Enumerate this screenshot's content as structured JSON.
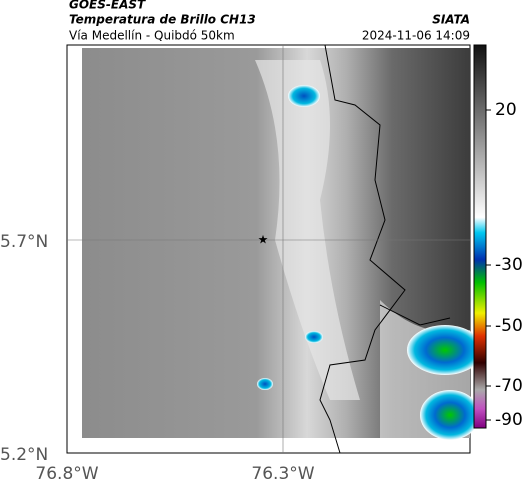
{
  "header": {
    "source": "GOES-EAST",
    "product": "Temperatura de Brillo CH13",
    "org": "SIATA",
    "region": "Vía Medellín - Quibdó 50km",
    "timestamp": "2024-11-06 14:09"
  },
  "axes": {
    "lat_labels": [
      "5.7°N",
      "5.2°N"
    ],
    "lon_labels": [
      "76.8°W",
      "76.3°W"
    ]
  },
  "colorbar": {
    "ticks": [
      20,
      -30,
      -50,
      -70,
      -90
    ]
  }
}
